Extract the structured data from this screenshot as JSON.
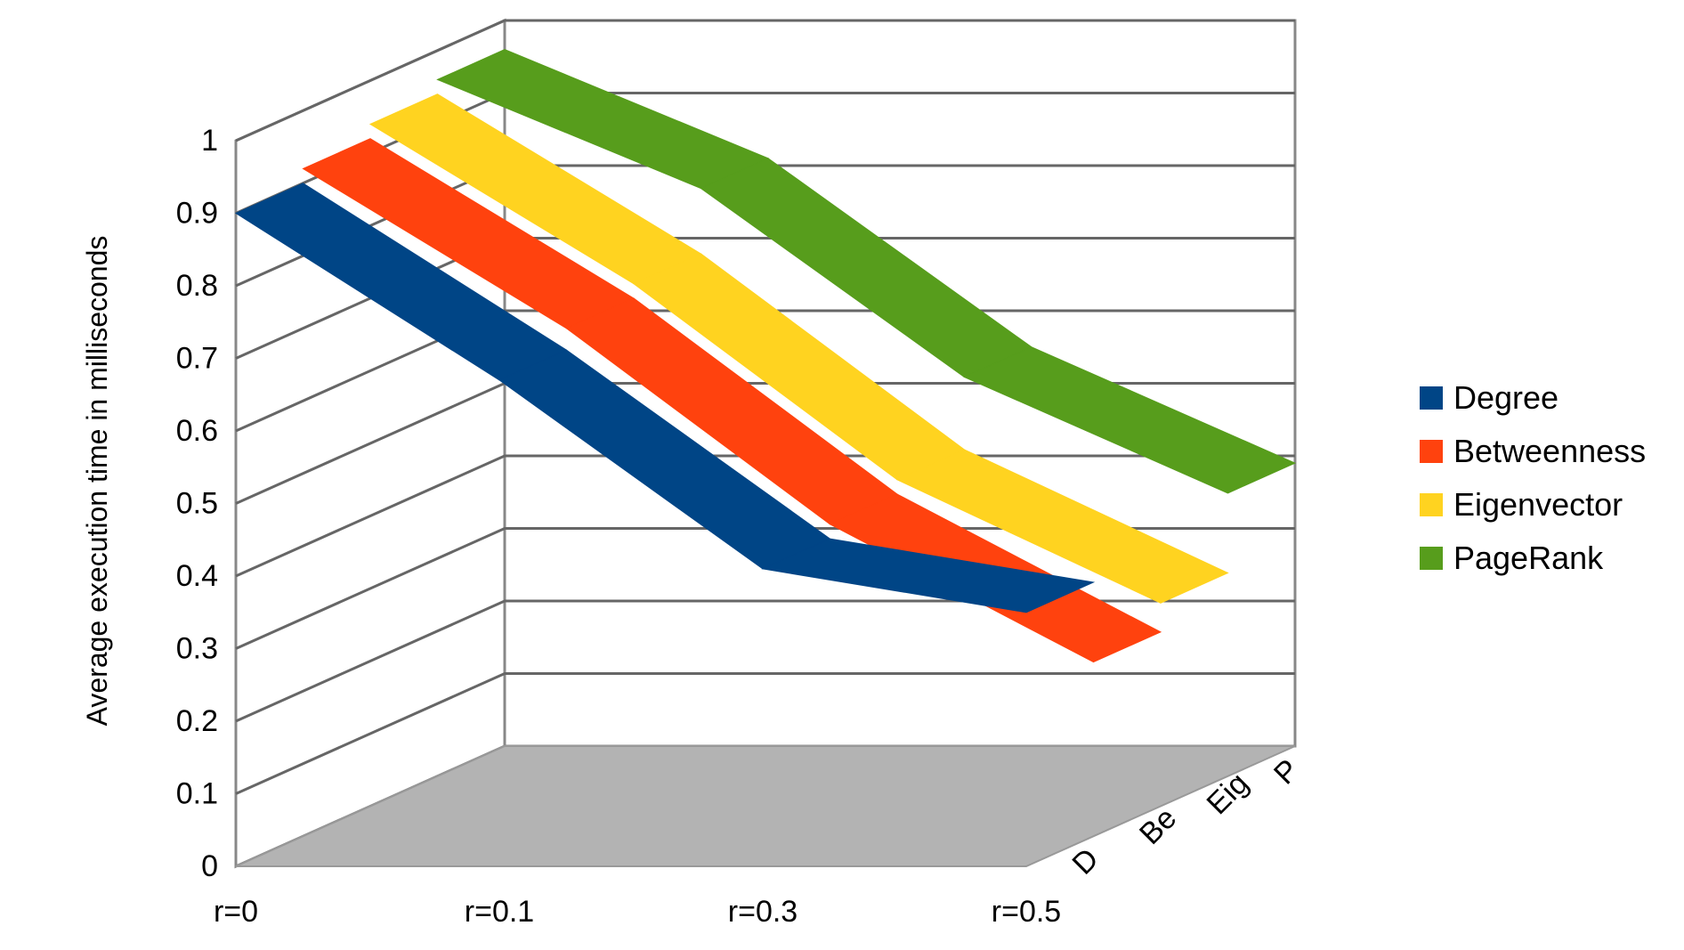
{
  "chart_data": {
    "type": "area",
    "style": "3d-deep",
    "title": "",
    "xlabel": "",
    "ylabel": "Average execution time in milliseconds",
    "ylim": [
      0,
      1
    ],
    "yticks": [
      0,
      0.1,
      0.2,
      0.3,
      0.4,
      0.5,
      0.6,
      0.7,
      0.8,
      0.9,
      1
    ],
    "y_tick_labels": [
      "0",
      "0.1",
      "0.2",
      "0.3",
      "0.4",
      "0.5",
      "0.6",
      "0.7",
      "0.8",
      "0.9",
      "1"
    ],
    "categories": [
      "r=0",
      "r=0.1",
      "r=0.3",
      "r=0.5"
    ],
    "depth_labels": [
      "D",
      "Be",
      "Eig",
      "P"
    ],
    "grid": true,
    "legend_position": "right",
    "series": [
      {
        "name": "Degree",
        "color": "#004586",
        "values": [
          0.9,
          0.67,
          0.41,
          0.35
        ]
      },
      {
        "name": "Betweenness",
        "color": "#ff420e",
        "values": [
          0.92,
          0.7,
          0.43,
          0.24
        ]
      },
      {
        "name": "Eigenvector",
        "color": "#ffd320",
        "values": [
          0.94,
          0.72,
          0.45,
          0.28
        ]
      },
      {
        "name": "PageRank",
        "color": "#579d1c",
        "values": [
          0.96,
          0.81,
          0.55,
          0.39
        ]
      }
    ],
    "floor_color": "#b3b3b3",
    "grid_color": "#b3b3b3"
  }
}
